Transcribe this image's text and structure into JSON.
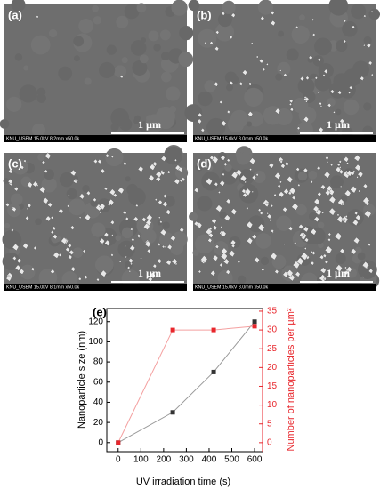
{
  "panels": [
    {
      "label": "(a)",
      "scale": "1 µm",
      "info": "KNU_USEM 15.0kV 8.2mm x50.0k"
    },
    {
      "label": "(b)",
      "scale": "1 µm",
      "info": "KNU_USEM 15.0kV 8.0mm x50.0k"
    },
    {
      "label": "(c)",
      "scale": "1 µm",
      "info": "KNU_USEM 15.0kV 8.1mm x50.0k"
    },
    {
      "label": "(d)",
      "scale": "1 µm",
      "info": "KNU_USEM 15.0kV 8.0mm x50.0k"
    }
  ],
  "chart_data": {
    "type": "line",
    "label": "(e)",
    "x_label": "UV irradiation time (s)",
    "y_label": "Nanoparticle size (nm)",
    "y2_label": "Number of nanoparticles per µm²",
    "x": [
      0,
      240,
      420,
      600
    ],
    "series": [
      {
        "name": "Nanoparticle size",
        "color": "#333333",
        "line_color": "#999999",
        "values": [
          0,
          30,
          70,
          120
        ]
      },
      {
        "name": "Number of nanoparticles",
        "color": "#e8262c",
        "line_color": "#f4a0a0",
        "axis": "y2",
        "values": [
          0,
          30,
          30,
          31
        ]
      }
    ],
    "xlim": [
      -50,
      635
    ],
    "xticks": [
      0,
      100,
      200,
      300,
      400,
      500,
      600
    ],
    "ylim": [
      -9,
      133
    ],
    "yticks": [
      0,
      20,
      40,
      60,
      80,
      100,
      120
    ],
    "y2lim": [
      -2.4,
      35.7
    ],
    "y2ticks": [
      0,
      5,
      10,
      15,
      20,
      25,
      30,
      35
    ],
    "y2_color": "#e8262c"
  }
}
